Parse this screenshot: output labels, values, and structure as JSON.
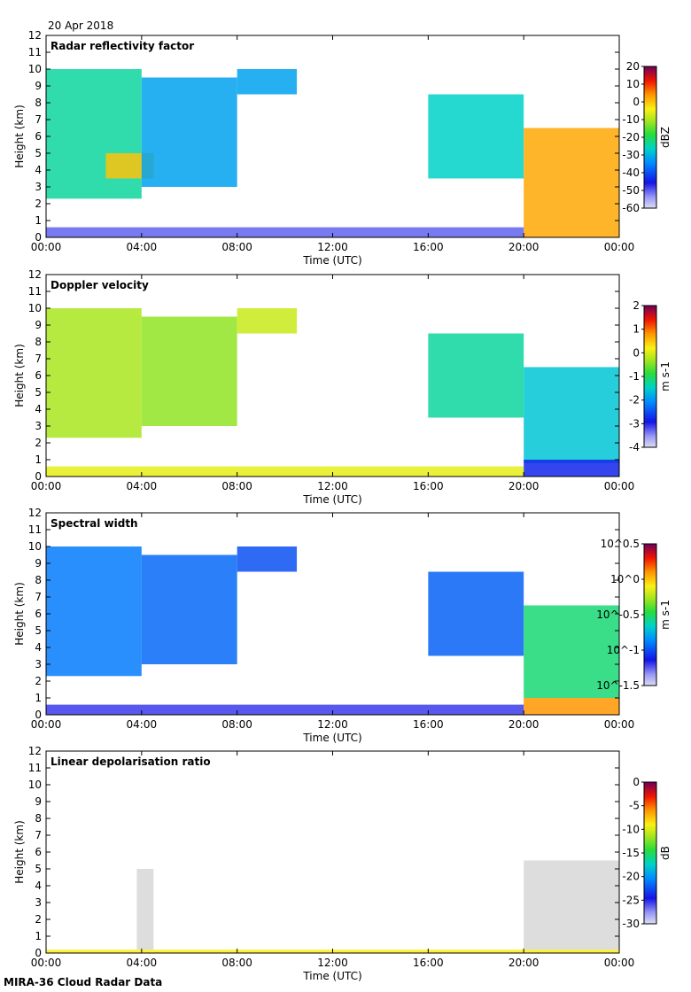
{
  "header": {
    "date": "20 Apr 2018"
  },
  "footer": {
    "instrument": "MIRA-36 Cloud Radar Data"
  },
  "chart_data": [
    {
      "type": "heatmap",
      "title": "Radar reflectivity factor",
      "xlabel": "Time (UTC)",
      "ylabel": "Height (km)",
      "x_ticks": [
        "00:00",
        "04:00",
        "08:00",
        "12:00",
        "16:00",
        "20:00",
        "00:00"
      ],
      "y_ticks": [
        0,
        1,
        2,
        3,
        4,
        5,
        6,
        7,
        8,
        9,
        10,
        11,
        12
      ],
      "ylim": [
        0,
        12
      ],
      "colorbar": {
        "label": "dBZ",
        "ticks": [
          "20",
          "10",
          "0",
          "-10",
          "-20",
          "-30",
          "-40",
          "-50",
          "-60"
        ],
        "range": [
          -60,
          20
        ]
      },
      "regions": [
        {
          "t0": 0.0,
          "t1": 4.0,
          "h0": 2.3,
          "h1": 10.0,
          "level": 0.45
        },
        {
          "t0": 2.5,
          "t1": 4.5,
          "h0": 3.5,
          "h1": 5.0,
          "level": 0.75
        },
        {
          "t0": 4.0,
          "t1": 8.0,
          "h0": 3.0,
          "h1": 9.5,
          "level": 0.35
        },
        {
          "t0": 8.0,
          "t1": 10.5,
          "h0": 8.5,
          "h1": 10.0,
          "level": 0.35
        },
        {
          "t0": 16.0,
          "t1": 20.0,
          "h0": 3.5,
          "h1": 8.5,
          "level": 0.42
        },
        {
          "t0": 20.0,
          "t1": 24.0,
          "h0": 0.0,
          "h1": 6.5,
          "level": 0.78
        },
        {
          "t0": 0.0,
          "t1": 20.0,
          "h0": 0.0,
          "h1": 0.6,
          "level": 0.12
        }
      ]
    },
    {
      "type": "heatmap",
      "title": "Doppler velocity",
      "xlabel": "Time (UTC)",
      "ylabel": "Height (km)",
      "x_ticks": [
        "00:00",
        "04:00",
        "08:00",
        "12:00",
        "16:00",
        "20:00",
        "00:00"
      ],
      "y_ticks": [
        0,
        1,
        2,
        3,
        4,
        5,
        6,
        7,
        8,
        9,
        10,
        11,
        12
      ],
      "ylim": [
        0,
        12
      ],
      "colorbar": {
        "label": "m s-1",
        "ticks": [
          "2",
          "1",
          "0",
          "-1",
          "-2",
          "-3",
          "-4"
        ],
        "range": [
          -4,
          2
        ]
      },
      "regions": [
        {
          "t0": 0.0,
          "t1": 4.0,
          "h0": 2.3,
          "h1": 10.0,
          "level": 0.62
        },
        {
          "t0": 4.0,
          "t1": 8.0,
          "h0": 3.0,
          "h1": 9.5,
          "level": 0.6
        },
        {
          "t0": 8.0,
          "t1": 10.5,
          "h0": 8.5,
          "h1": 10.0,
          "level": 0.65
        },
        {
          "t0": 16.0,
          "t1": 20.0,
          "h0": 3.5,
          "h1": 8.5,
          "level": 0.45
        },
        {
          "t0": 20.0,
          "t1": 24.0,
          "h0": 0.8,
          "h1": 6.5,
          "level": 0.4
        },
        {
          "t0": 20.0,
          "t1": 24.0,
          "h0": 0.0,
          "h1": 1.0,
          "level": 0.2
        },
        {
          "t0": 0.0,
          "t1": 20.0,
          "h0": 0.0,
          "h1": 0.6,
          "level": 0.68
        }
      ]
    },
    {
      "type": "heatmap",
      "title": "Spectral width",
      "xlabel": "Time (UTC)",
      "ylabel": "Height (km)",
      "x_ticks": [
        "00:00",
        "04:00",
        "08:00",
        "12:00",
        "16:00",
        "20:00",
        "00:00"
      ],
      "y_ticks": [
        0,
        1,
        2,
        3,
        4,
        5,
        6,
        7,
        8,
        9,
        10,
        11,
        12
      ],
      "ylim": [
        0,
        12
      ],
      "colorbar": {
        "label": "m s-1",
        "ticks": [
          "10^0.5",
          "10^0",
          "10^-0.5",
          "10^-1",
          "10^-1.5"
        ],
        "range": [
          -1.5,
          0.5
        ]
      },
      "regions": [
        {
          "t0": 0.0,
          "t1": 4.0,
          "h0": 2.3,
          "h1": 10.0,
          "level": 0.3
        },
        {
          "t0": 4.0,
          "t1": 8.0,
          "h0": 3.0,
          "h1": 9.5,
          "level": 0.28
        },
        {
          "t0": 8.0,
          "t1": 10.5,
          "h0": 8.5,
          "h1": 10.0,
          "level": 0.25
        },
        {
          "t0": 16.0,
          "t1": 20.0,
          "h0": 3.5,
          "h1": 8.5,
          "level": 0.27
        },
        {
          "t0": 20.0,
          "t1": 24.0,
          "h0": 1.0,
          "h1": 6.5,
          "level": 0.48
        },
        {
          "t0": 20.0,
          "t1": 24.0,
          "h0": 0.0,
          "h1": 1.0,
          "level": 0.8
        },
        {
          "t0": 0.0,
          "t1": 20.0,
          "h0": 0.0,
          "h1": 0.6,
          "level": 0.15
        }
      ]
    },
    {
      "type": "heatmap",
      "title": "Linear depolarisation ratio",
      "xlabel": "Time (UTC)",
      "ylabel": "Height (km)",
      "x_ticks": [
        "00:00",
        "04:00",
        "08:00",
        "12:00",
        "16:00",
        "20:00",
        "00:00"
      ],
      "y_ticks": [
        0,
        1,
        2,
        3,
        4,
        5,
        6,
        7,
        8,
        9,
        10,
        11,
        12
      ],
      "ylim": [
        0,
        12
      ],
      "colorbar": {
        "label": "dB",
        "ticks": [
          "0",
          "-5",
          "-10",
          "-15",
          "-20",
          "-25",
          "-30"
        ],
        "range": [
          -30,
          0
        ]
      },
      "regions": [
        {
          "t0": 3.8,
          "t1": 4.5,
          "h0": 0.2,
          "h1": 5.0,
          "level": 0.0
        },
        {
          "t0": 20.0,
          "t1": 24.0,
          "h0": 0.2,
          "h1": 5.5,
          "level": 0.0
        },
        {
          "t0": 0.0,
          "t1": 24.0,
          "h0": 0.0,
          "h1": 0.2,
          "level": 0.7
        }
      ]
    }
  ]
}
